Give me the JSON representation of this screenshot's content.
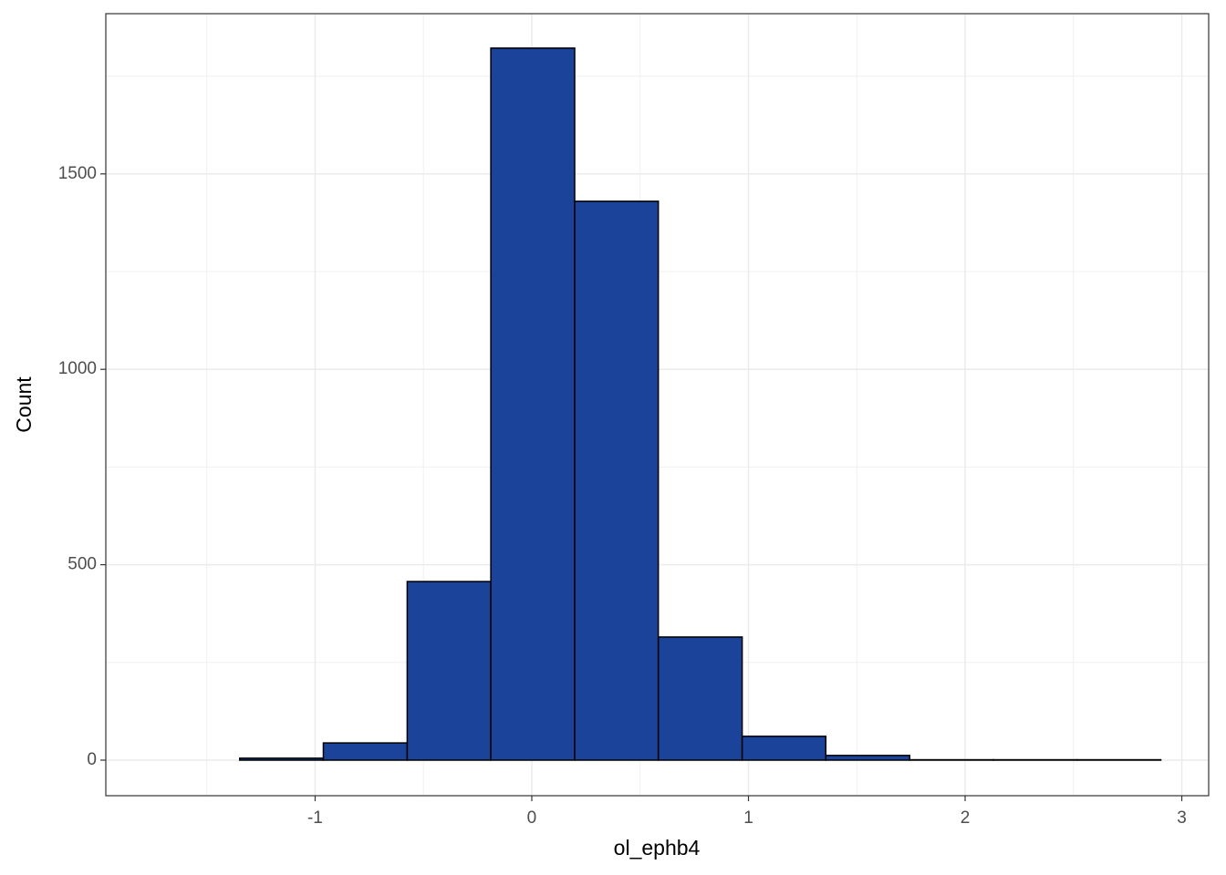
{
  "chart_data": {
    "type": "histogram",
    "x_label": "ol_ephb4",
    "y_label": "Count",
    "bins": [
      -1.735,
      -1.348,
      -0.962,
      -0.575,
      -0.189,
      0.198,
      0.584,
      0.971,
      1.357,
      1.744,
      2.13,
      2.517,
      2.903
    ],
    "counts": [
      0,
      5,
      44,
      457,
      1822,
      1430,
      315,
      61,
      12,
      1,
      1,
      1
    ],
    "color": "#1a4399",
    "edge_color": "#000000",
    "xlim": [
      -1.966,
      3.124
    ],
    "ylim": [
      -91,
      1910
    ],
    "xticks": [
      -1,
      0,
      1,
      2,
      3
    ],
    "yticks": [
      0,
      500,
      1000,
      1500
    ],
    "x_minor_grid": [
      -1.5,
      -0.5,
      0.5,
      1.5,
      2.5
    ],
    "y_minor_grid": [
      250,
      750,
      1250,
      1750
    ],
    "grid": true
  }
}
